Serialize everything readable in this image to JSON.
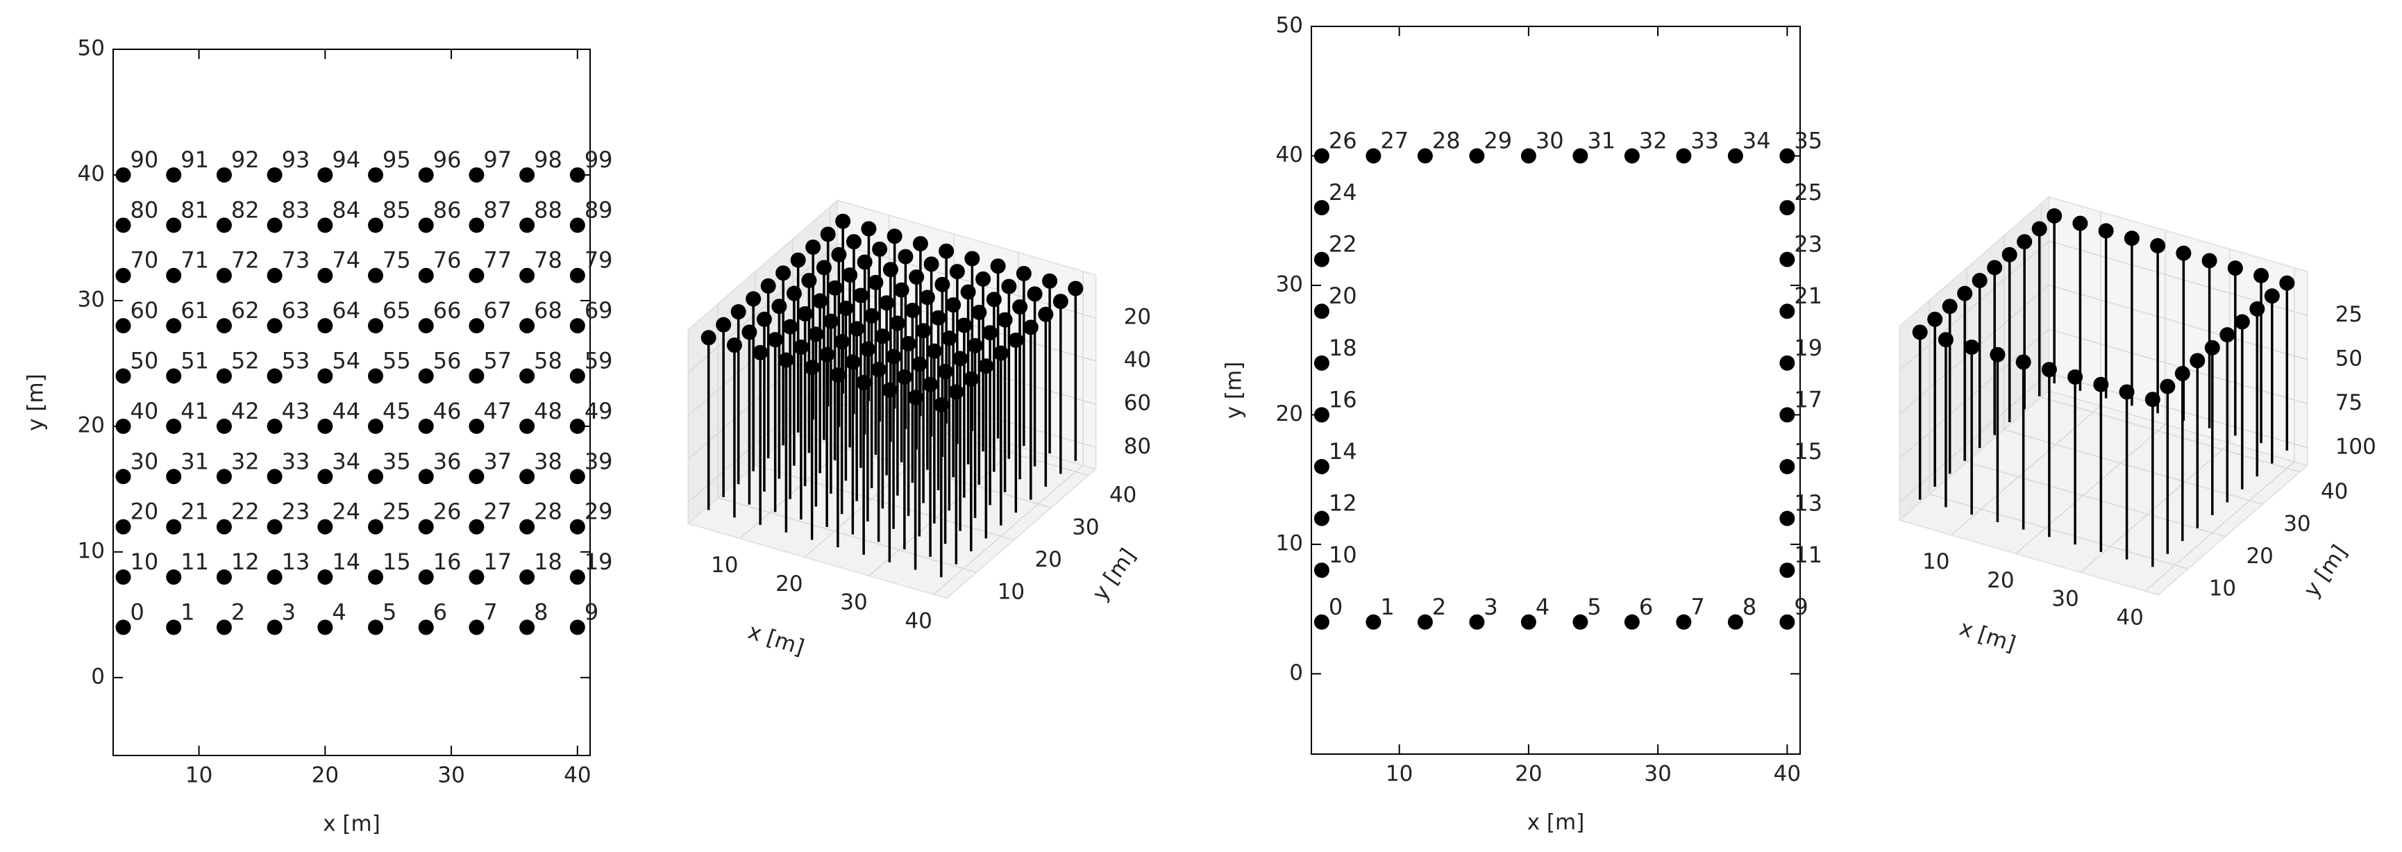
{
  "chart_data": [
    {
      "type": "scatter",
      "color": "#000000",
      "x": [
        4,
        8,
        12,
        16,
        20,
        24,
        28,
        32,
        36,
        40,
        4,
        8,
        12,
        16,
        20,
        24,
        28,
        32,
        36,
        40,
        4,
        8,
        12,
        16,
        20,
        24,
        28,
        32,
        36,
        40,
        4,
        8,
        12,
        16,
        20,
        24,
        28,
        32,
        36,
        40,
        4,
        8,
        12,
        16,
        20,
        24,
        28,
        32,
        36,
        40,
        4,
        8,
        12,
        16,
        20,
        24,
        28,
        32,
        36,
        40,
        4,
        8,
        12,
        16,
        20,
        24,
        28,
        32,
        36,
        40,
        4,
        8,
        12,
        16,
        20,
        24,
        28,
        32,
        36,
        40,
        4,
        8,
        12,
        16,
        20,
        24,
        28,
        32,
        36,
        40,
        4,
        8,
        12,
        16,
        20,
        24,
        28,
        32,
        36,
        40
      ],
      "y": [
        4,
        4,
        4,
        4,
        4,
        4,
        4,
        4,
        4,
        4,
        8,
        8,
        8,
        8,
        8,
        8,
        8,
        8,
        8,
        8,
        12,
        12,
        12,
        12,
        12,
        12,
        12,
        12,
        12,
        12,
        16,
        16,
        16,
        16,
        16,
        16,
        16,
        16,
        16,
        16,
        20,
        20,
        20,
        20,
        20,
        20,
        20,
        20,
        20,
        20,
        24,
        24,
        24,
        24,
        24,
        24,
        24,
        24,
        24,
        24,
        28,
        28,
        28,
        28,
        28,
        28,
        28,
        28,
        28,
        28,
        32,
        32,
        32,
        32,
        32,
        32,
        32,
        32,
        32,
        32,
        36,
        36,
        36,
        36,
        36,
        36,
        36,
        36,
        36,
        36,
        40,
        40,
        40,
        40,
        40,
        40,
        40,
        40,
        40,
        40
      ],
      "point_labels": [
        "0",
        "1",
        "2",
        "3",
        "4",
        "5",
        "6",
        "7",
        "8",
        "9",
        "10",
        "11",
        "12",
        "13",
        "14",
        "15",
        "16",
        "17",
        "18",
        "19",
        "20",
        "21",
        "22",
        "23",
        "24",
        "25",
        "26",
        "27",
        "28",
        "29",
        "30",
        "31",
        "32",
        "33",
        "34",
        "35",
        "36",
        "37",
        "38",
        "39",
        "40",
        "41",
        "42",
        "43",
        "44",
        "45",
        "46",
        "47",
        "48",
        "49",
        "50",
        "51",
        "52",
        "53",
        "54",
        "55",
        "56",
        "57",
        "58",
        "59",
        "60",
        "61",
        "62",
        "63",
        "64",
        "65",
        "66",
        "67",
        "68",
        "69",
        "70",
        "71",
        "72",
        "73",
        "74",
        "75",
        "76",
        "77",
        "78",
        "79",
        "80",
        "81",
        "82",
        "83",
        "84",
        "85",
        "86",
        "87",
        "88",
        "89",
        "90",
        "91",
        "92",
        "93",
        "94",
        "95",
        "96",
        "97",
        "98",
        "99"
      ],
      "xlim": [
        3.2,
        41
      ],
      "ylim": [
        -6.2,
        50
      ],
      "xticks": [
        10,
        20,
        30,
        40
      ],
      "yticks": [
        0,
        10,
        20,
        30,
        40,
        50
      ],
      "xlabel": "x [m]",
      "ylabel": "y [m]"
    },
    {
      "type": "scatter3d",
      "color": "#000000",
      "x": [
        4,
        8,
        12,
        16,
        20,
        24,
        28,
        32,
        36,
        40,
        4,
        8,
        12,
        16,
        20,
        24,
        28,
        32,
        36,
        40,
        4,
        8,
        12,
        16,
        20,
        24,
        28,
        32,
        36,
        40,
        4,
        8,
        12,
        16,
        20,
        24,
        28,
        32,
        36,
        40,
        4,
        8,
        12,
        16,
        20,
        24,
        28,
        32,
        36,
        40,
        4,
        8,
        12,
        16,
        20,
        24,
        28,
        32,
        36,
        40,
        4,
        8,
        12,
        16,
        20,
        24,
        28,
        32,
        36,
        40,
        4,
        8,
        12,
        16,
        20,
        24,
        28,
        32,
        36,
        40,
        4,
        8,
        12,
        16,
        20,
        24,
        28,
        32,
        36,
        40,
        4,
        8,
        12,
        16,
        20,
        24,
        28,
        32,
        36,
        40
      ],
      "y": [
        4,
        4,
        4,
        4,
        4,
        4,
        4,
        4,
        4,
        4,
        8,
        8,
        8,
        8,
        8,
        8,
        8,
        8,
        8,
        8,
        12,
        12,
        12,
        12,
        12,
        12,
        12,
        12,
        12,
        12,
        16,
        16,
        16,
        16,
        16,
        16,
        16,
        16,
        16,
        16,
        20,
        20,
        20,
        20,
        20,
        20,
        20,
        20,
        20,
        20,
        24,
        24,
        24,
        24,
        24,
        24,
        24,
        24,
        24,
        24,
        28,
        28,
        28,
        28,
        28,
        28,
        28,
        28,
        28,
        28,
        32,
        32,
        32,
        32,
        32,
        32,
        32,
        32,
        32,
        32,
        36,
        36,
        36,
        36,
        36,
        36,
        36,
        36,
        36,
        36,
        40,
        40,
        40,
        40,
        40,
        40,
        40,
        40,
        40,
        40
      ],
      "z": [
        5,
        5,
        5,
        5,
        5,
        5,
        5,
        5,
        5,
        5,
        5,
        5,
        5,
        5,
        5,
        5,
        5,
        5,
        5,
        5,
        5,
        5,
        5,
        5,
        5,
        5,
        5,
        5,
        5,
        5,
        5,
        5,
        5,
        5,
        5,
        5,
        5,
        5,
        5,
        5,
        5,
        5,
        5,
        5,
        5,
        5,
        5,
        5,
        5,
        5,
        5,
        5,
        5,
        5,
        5,
        5,
        5,
        5,
        5,
        5,
        5,
        5,
        5,
        5,
        5,
        5,
        5,
        5,
        5,
        5,
        5,
        5,
        5,
        5,
        5,
        5,
        5,
        5,
        5,
        5,
        5,
        5,
        5,
        5,
        5,
        5,
        5,
        5,
        5,
        5,
        5,
        5,
        5,
        5,
        5,
        5,
        5,
        5,
        5,
        5
      ],
      "stem_depth": 85,
      "xlim": [
        2,
        42
      ],
      "ylim": [
        2,
        42
      ],
      "zlim": [
        0,
        90
      ],
      "z_inverted": true,
      "xticks": [
        10,
        20,
        30,
        40
      ],
      "yticks": [
        10,
        20,
        30,
        40
      ],
      "zticks": [
        20,
        40,
        60,
        80
      ],
      "xlabel": "x [m]",
      "ylabel": "y [m]"
    },
    {
      "type": "scatter",
      "color": "#000000",
      "x": [
        4,
        8,
        12,
        16,
        20,
        24,
        28,
        32,
        36,
        40,
        4,
        40,
        4,
        40,
        4,
        40,
        4,
        40,
        4,
        40,
        4,
        40,
        4,
        40,
        4,
        40,
        4,
        8,
        12,
        16,
        20,
        24,
        28,
        32,
        36,
        40
      ],
      "y": [
        4,
        4,
        4,
        4,
        4,
        4,
        4,
        4,
        4,
        4,
        8,
        8,
        12,
        12,
        16,
        16,
        20,
        20,
        24,
        24,
        28,
        28,
        32,
        32,
        36,
        36,
        40,
        40,
        40,
        40,
        40,
        40,
        40,
        40,
        40,
        40
      ],
      "point_labels": [
        "0",
        "1",
        "2",
        "3",
        "4",
        "5",
        "6",
        "7",
        "8",
        "9",
        "10",
        "11",
        "12",
        "13",
        "14",
        "15",
        "16",
        "17",
        "18",
        "19",
        "20",
        "21",
        "22",
        "23",
        "24",
        "25",
        "26",
        "27",
        "28",
        "29",
        "30",
        "31",
        "32",
        "33",
        "34",
        "35"
      ],
      "xlim": [
        3.2,
        41
      ],
      "ylim": [
        -6.2,
        50
      ],
      "xticks": [
        10,
        20,
        30,
        40
      ],
      "yticks": [
        0,
        10,
        20,
        30,
        40,
        50
      ],
      "xlabel": "x [m]",
      "ylabel": "y [m]"
    },
    {
      "type": "scatter3d",
      "color": "#000000",
      "x": [
        4,
        8,
        12,
        16,
        20,
        24,
        28,
        32,
        36,
        40,
        4,
        40,
        4,
        40,
        4,
        40,
        4,
        40,
        4,
        40,
        4,
        40,
        4,
        40,
        4,
        40,
        4,
        8,
        12,
        16,
        20,
        24,
        28,
        32,
        36,
        40
      ],
      "y": [
        4,
        4,
        4,
        4,
        4,
        4,
        4,
        4,
        4,
        4,
        8,
        8,
        12,
        12,
        16,
        16,
        20,
        20,
        24,
        24,
        28,
        28,
        32,
        32,
        36,
        36,
        40,
        40,
        40,
        40,
        40,
        40,
        40,
        40,
        40,
        40
      ],
      "z": [
        5,
        5,
        5,
        5,
        5,
        5,
        5,
        5,
        5,
        5,
        5,
        5,
        5,
        5,
        5,
        5,
        5,
        5,
        5,
        5,
        5,
        5,
        5,
        5,
        5,
        5,
        5,
        5,
        5,
        5,
        5,
        5,
        5,
        5,
        5,
        5
      ],
      "stem_depth": 100,
      "xlim": [
        2,
        42
      ],
      "ylim": [
        2,
        42
      ],
      "zlim": [
        0,
        110
      ],
      "z_inverted": true,
      "xticks": [
        10,
        20,
        30,
        40
      ],
      "yticks": [
        10,
        20,
        30,
        40
      ],
      "zticks": [
        25,
        50,
        75,
        100
      ],
      "xlabel": "x [m]",
      "ylabel": "y [m]"
    }
  ]
}
